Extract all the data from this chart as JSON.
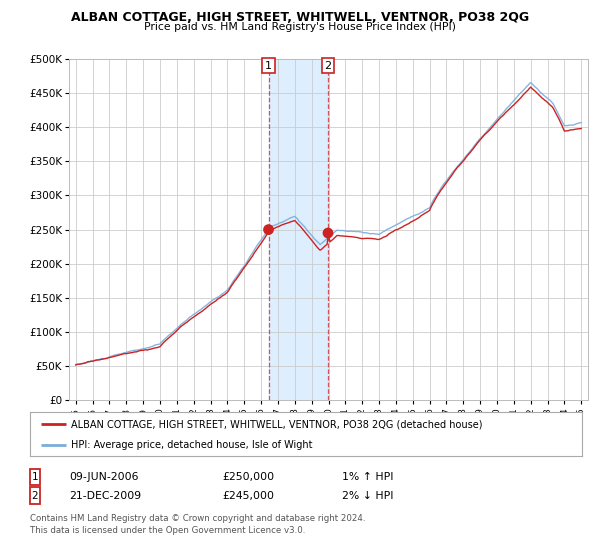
{
  "title": "ALBAN COTTAGE, HIGH STREET, WHITWELL, VENTNOR, PO38 2QG",
  "subtitle": "Price paid vs. HM Land Registry's House Price Index (HPI)",
  "ylabel_ticks": [
    "£0",
    "£50K",
    "£100K",
    "£150K",
    "£200K",
    "£250K",
    "£300K",
    "£350K",
    "£400K",
    "£450K",
    "£500K"
  ],
  "ytick_vals": [
    0,
    50000,
    100000,
    150000,
    200000,
    250000,
    300000,
    350000,
    400000,
    450000,
    500000
  ],
  "ylim": [
    0,
    500000
  ],
  "sale1_date": 2006.44,
  "sale1_price": 250000,
  "sale1_label": "1",
  "sale2_date": 2009.97,
  "sale2_price": 245000,
  "sale2_label": "2",
  "legend_line1": "ALBAN COTTAGE, HIGH STREET, WHITWELL, VENTNOR, PO38 2QG (detached house)",
  "legend_line2": "HPI: Average price, detached house, Isle of Wight",
  "table_row1": [
    "1",
    "09-JUN-2006",
    "£250,000",
    "1% ↑ HPI"
  ],
  "table_row2": [
    "2",
    "21-DEC-2009",
    "£245,000",
    "2% ↓ HPI"
  ],
  "footer": "Contains HM Land Registry data © Crown copyright and database right 2024.\nThis data is licensed under the Open Government Licence v3.0.",
  "hpi_color": "#7aaddb",
  "price_color": "#cc2222",
  "sale_dot_color": "#cc2222",
  "highlight_color": "#ddeeff",
  "background_color": "#ffffff",
  "grid_color": "#cccccc"
}
